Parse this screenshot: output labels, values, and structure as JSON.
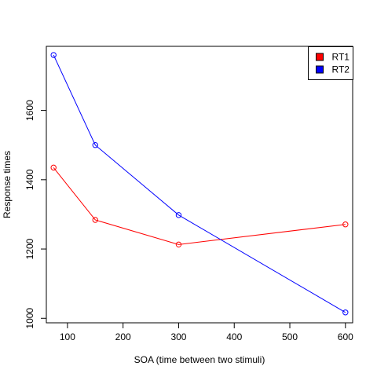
{
  "chart_data": {
    "type": "line",
    "title": "",
    "xlabel": "SOA (time between two stimuli)",
    "ylabel": "Response times",
    "x": [
      75,
      150,
      300,
      600
    ],
    "xlim": [
      62,
      613
    ],
    "ylim": [
      987,
      1785
    ],
    "xticks": [
      100,
      200,
      300,
      400,
      500,
      600
    ],
    "yticks": [
      1000,
      1200,
      1400,
      1600
    ],
    "series": [
      {
        "name": "RT1",
        "color": "#ff0000",
        "values": [
          1435,
          1284,
          1213,
          1271
        ]
      },
      {
        "name": "RT2",
        "color": "#0000ff",
        "values": [
          1760,
          1500,
          1298,
          1017
        ]
      }
    ],
    "markers": "open-circle",
    "grid": false,
    "legend_position": "top-right"
  }
}
